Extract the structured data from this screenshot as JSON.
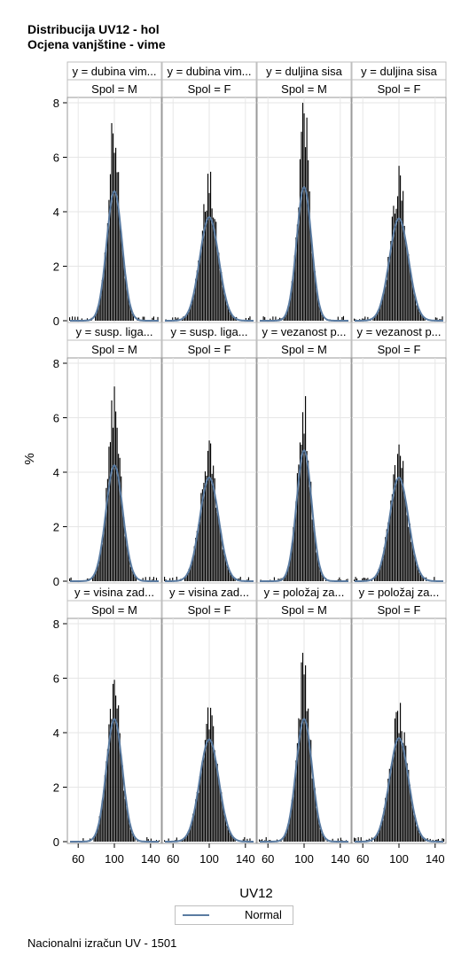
{
  "titles": [
    "Distribucija UV12 - hol",
    "Ocjena vanjštine - vime"
  ],
  "footnote": "Nacionalni izračun UV - 1501",
  "legend": {
    "label": "Normal",
    "line_color": "#5a7ba1"
  },
  "colors": {
    "bar": "#000000",
    "curve": "#5a7ba1",
    "header_bg": "#ffffff",
    "grid": "#e6e6e6"
  },
  "chart_data": {
    "type": "panel-histogram",
    "xlabel": "UV12",
    "ylabel": "%",
    "xlim": [
      50,
      150
    ],
    "ylim": [
      0,
      8
    ],
    "x_ticks": [
      60,
      100,
      140
    ],
    "y_ticks": [
      0,
      2,
      4,
      6,
      8
    ],
    "rows": [
      {
        "panels": [
          {
            "trait": "y = dubina vim...",
            "group": "Spol = M",
            "peak": 7.2,
            "normal_peak": 4.75,
            "mean": 100,
            "sd": 8.5
          },
          {
            "trait": "y = dubina vim...",
            "group": "Spol = F",
            "peak": 4.9,
            "normal_peak": 3.8,
            "mean": 100,
            "sd": 10.5
          },
          {
            "trait": "y = duljina sisa",
            "group": "Spol = M",
            "peak": 7.8,
            "normal_peak": 4.9,
            "mean": 100,
            "sd": 8.2
          },
          {
            "trait": "y = duljina sisa",
            "group": "Spol = F",
            "peak": 5.05,
            "normal_peak": 3.75,
            "mean": 100,
            "sd": 10.6
          }
        ]
      },
      {
        "panels": [
          {
            "trait": "y = susp. liga...",
            "group": "Spol = M",
            "peak": 6.6,
            "normal_peak": 4.25,
            "mean": 100,
            "sd": 9.3
          },
          {
            "trait": "y = susp. liga...",
            "group": "Spol = F",
            "peak": 4.6,
            "normal_peak": 3.8,
            "mean": 100,
            "sd": 10.5
          },
          {
            "trait": "y = vezanost p...",
            "group": "Spol = M",
            "peak": 6.3,
            "normal_peak": 4.8,
            "mean": 100,
            "sd": 8.3
          },
          {
            "trait": "y = vezanost p...",
            "group": "Spol = F",
            "peak": 4.6,
            "normal_peak": 3.8,
            "mean": 100,
            "sd": 10.5
          }
        ]
      },
      {
        "panels": [
          {
            "trait": "y = visina zad...",
            "group": "Spol = M",
            "peak": 5.65,
            "normal_peak": 4.5,
            "mean": 100,
            "sd": 8.8
          },
          {
            "trait": "y = visina zad...",
            "group": "Spol = F",
            "peak": 4.4,
            "normal_peak": 3.75,
            "mean": 100,
            "sd": 10.6
          },
          {
            "trait": "y = položaj za...",
            "group": "Spol = M",
            "peak": 6.5,
            "normal_peak": 4.5,
            "mean": 100,
            "sd": 8.8
          },
          {
            "trait": "y = položaj za...",
            "group": "Spol = F",
            "peak": 4.55,
            "normal_peak": 3.8,
            "mean": 100,
            "sd": 10.5
          }
        ]
      }
    ]
  }
}
